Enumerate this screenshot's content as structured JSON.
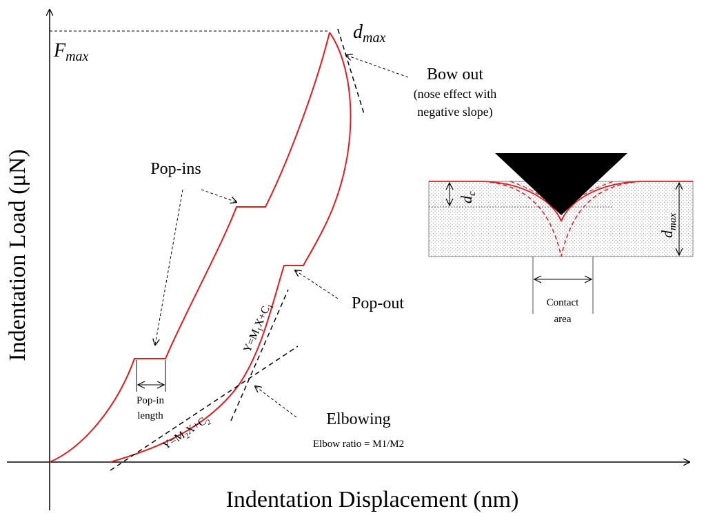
{
  "axes": {
    "y_label": "Indentation Load (μN)",
    "x_label": "Indentation Displacement (nm)"
  },
  "labels": {
    "f_max": [
      "F",
      "max"
    ],
    "d_max": [
      "d",
      "max"
    ],
    "bow_out": {
      "title": "Bow out",
      "note_line1": "(nose effect with",
      "note_line2": "negative slope)"
    },
    "pop_ins": "Pop-ins",
    "pop_out": "Pop-out",
    "pop_in_length": [
      "Pop-in",
      "length"
    ],
    "fit1": [
      "Y=M",
      "1",
      "X+C",
      "1"
    ],
    "fit2": [
      "Y=M",
      "2",
      "X+C",
      "2"
    ],
    "elbowing": {
      "title": "Elbowing",
      "ratio": "Elbow ratio = M1/M2"
    }
  },
  "inset": {
    "d_c": [
      "d",
      "c"
    ],
    "d_max": [
      "d",
      "max"
    ],
    "contact_area": [
      "Contact",
      "area"
    ]
  }
}
